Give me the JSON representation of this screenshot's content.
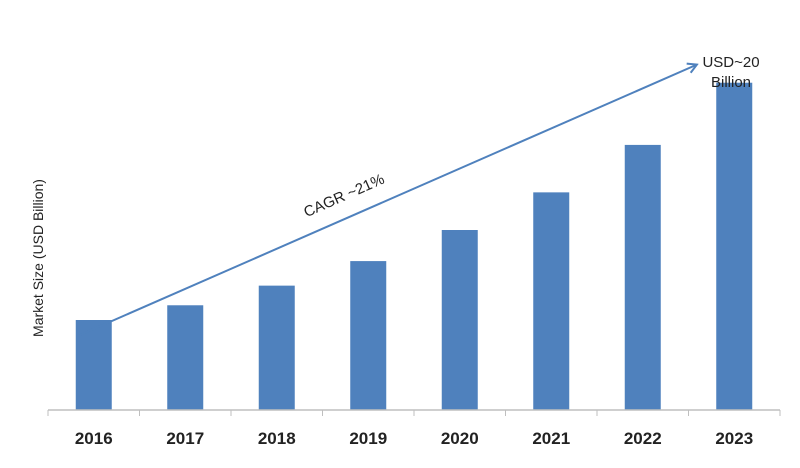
{
  "chart_data": {
    "type": "bar",
    "categories": [
      "2016",
      "2017",
      "2018",
      "2019",
      "2020",
      "2021",
      "2022",
      "2023"
    ],
    "values": [
      5.5,
      6.4,
      7.6,
      9.1,
      11.0,
      13.3,
      16.2,
      20.0
    ],
    "ylabel": "Market Size (USD Billion)",
    "xlabel": "",
    "ylim": [
      0,
      22
    ],
    "grid": false,
    "legend": false,
    "bar_color": "#4F81BD",
    "annotations": {
      "cagr": "CAGR ~21%",
      "endpoint_line1": "USD~20",
      "endpoint_line2": "Billion"
    },
    "arrow_color": "#4F81BD"
  }
}
